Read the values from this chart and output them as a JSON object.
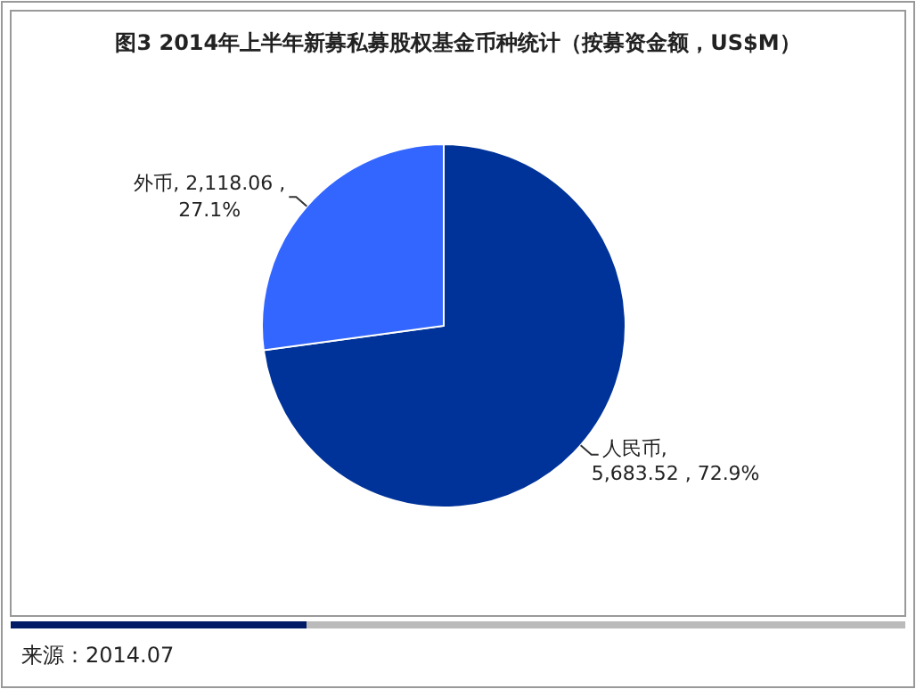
{
  "chart_data": {
    "type": "pie",
    "title": "图3 2014年上半年新募私募股权基金币种统计（按募资金额，US$M）",
    "categories": [
      "人民币",
      "外币"
    ],
    "values": [
      5683.52,
      2118.06
    ],
    "value_labels": [
      ", 5,683.52 , 72.9%",
      ", 2,118.06 , 27.1%"
    ],
    "colors": [
      "#003399",
      "#3366ff"
    ],
    "annotations": [
      "来源：2014.07"
    ]
  }
}
